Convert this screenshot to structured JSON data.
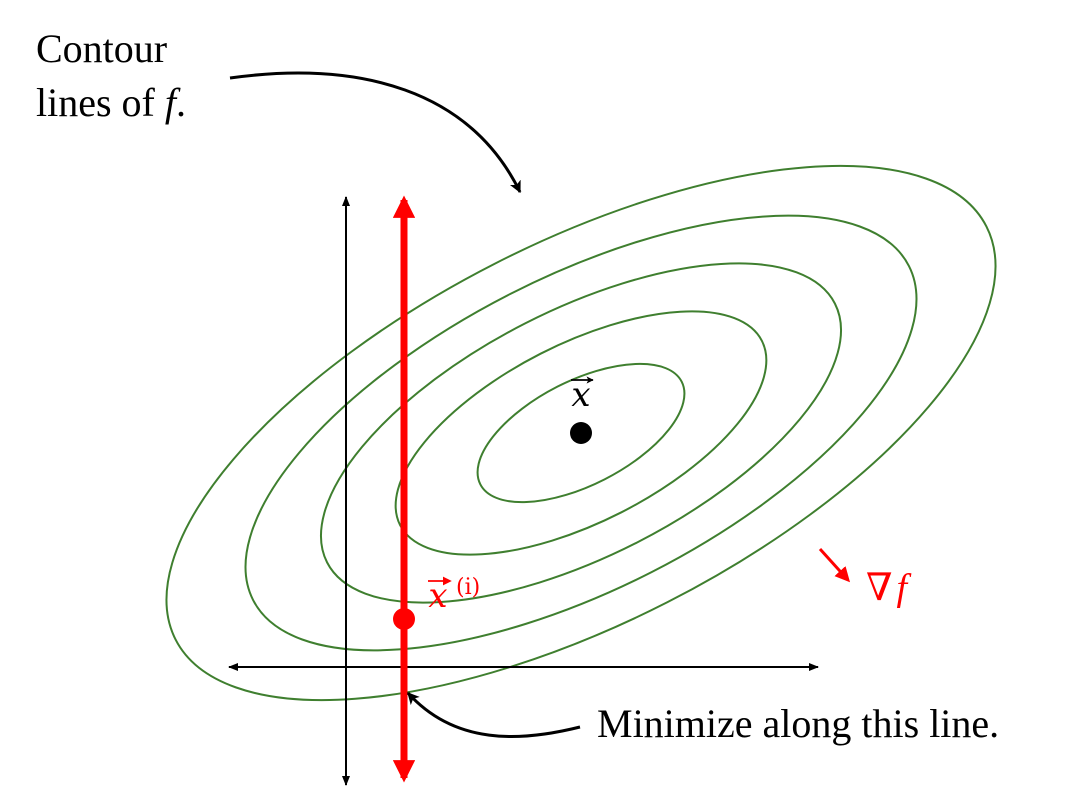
{
  "annotations": {
    "contour_line1": "Contour",
    "contour_line2_prefix": "lines of ",
    "contour_var": "f",
    "contour_suffix": ".",
    "minimize": "Minimize along this line."
  },
  "labels": {
    "optimum_symbol": "x",
    "current_symbol": "x",
    "current_superscript": "(i)",
    "gradient_symbol": "∇",
    "gradient_var": "f"
  },
  "colors": {
    "contour": "#3f7f2f",
    "highlight": "#ff0000",
    "ink": "#000000"
  },
  "icons": {
    "optimum_marker": "filled-circle",
    "current_marker": "filled-circle",
    "gradient_arrow": "arrow"
  }
}
